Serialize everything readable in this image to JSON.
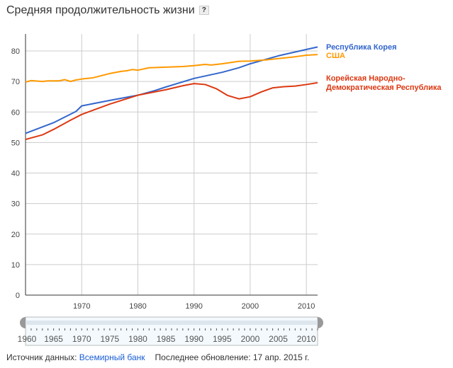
{
  "header": {
    "title": "Средняя продолжительность жизни",
    "help": "?"
  },
  "footer": {
    "source_label": "Источник данных:",
    "source_link": "Всемирный банк",
    "updated": "Последнее обновление: 17 апр. 2015 г."
  },
  "chart_data": {
    "type": "line",
    "title": "Средняя продолжительность жизни",
    "xlim": [
      1960,
      2012
    ],
    "ylim": [
      0,
      80
    ],
    "yticks": [
      0,
      10,
      20,
      30,
      40,
      50,
      60,
      70,
      80
    ],
    "xticks": [
      1970,
      1980,
      1990,
      2000,
      2010
    ],
    "slider_ticks": [
      1960,
      1965,
      1970,
      1975,
      1980,
      1985,
      1990,
      1995,
      2000,
      2005,
      2010
    ],
    "legend_placement": "right",
    "series": [
      {
        "name": "Республика Корея",
        "color": "#3366cc",
        "points": [
          [
            1960,
            53
          ],
          [
            1965,
            56.5
          ],
          [
            1969,
            60.2
          ],
          [
            1970,
            62
          ],
          [
            1975,
            63.8
          ],
          [
            1980,
            65.5
          ],
          [
            1983,
            67
          ],
          [
            1985,
            68.2
          ],
          [
            1990,
            71
          ],
          [
            1995,
            73
          ],
          [
            1998,
            74.5
          ],
          [
            2000,
            75.8
          ],
          [
            2005,
            78.4
          ],
          [
            2010,
            80.5
          ],
          [
            2012,
            81.3
          ]
        ]
      },
      {
        "name": "США",
        "color": "#ff9900",
        "points": [
          [
            1960,
            69.8
          ],
          [
            1961,
            70.3
          ],
          [
            1963,
            70
          ],
          [
            1964,
            70.2
          ],
          [
            1966,
            70.2
          ],
          [
            1967,
            70.6
          ],
          [
            1968,
            70
          ],
          [
            1969,
            70.5
          ],
          [
            1970,
            70.8
          ],
          [
            1972,
            71.2
          ],
          [
            1975,
            72.6
          ],
          [
            1977,
            73.3
          ],
          [
            1978,
            73.5
          ],
          [
            1979,
            73.9
          ],
          [
            1980,
            73.7
          ],
          [
            1982,
            74.5
          ],
          [
            1985,
            74.7
          ],
          [
            1988,
            74.9
          ],
          [
            1990,
            75.2
          ],
          [
            1992,
            75.6
          ],
          [
            1993,
            75.4
          ],
          [
            1995,
            75.8
          ],
          [
            1998,
            76.6
          ],
          [
            2000,
            76.7
          ],
          [
            2003,
            77.1
          ],
          [
            2005,
            77.5
          ],
          [
            2008,
            78.1
          ],
          [
            2010,
            78.6
          ],
          [
            2012,
            78.8
          ]
        ]
      },
      {
        "name": "Корейская Народно-Демократическая Республика",
        "label_lines": [
          "Корейская Народно-",
          "Демократическая Республика"
        ],
        "color": "#dc3912",
        "points": [
          [
            1960,
            51
          ],
          [
            1963,
            52.5
          ],
          [
            1965,
            54.3
          ],
          [
            1968,
            57.3
          ],
          [
            1970,
            59.2
          ],
          [
            1975,
            62.6
          ],
          [
            1980,
            65.5
          ],
          [
            1985,
            67.3
          ],
          [
            1988,
            68.6
          ],
          [
            1990,
            69.3
          ],
          [
            1992,
            69
          ],
          [
            1994,
            67.6
          ],
          [
            1996,
            65.4
          ],
          [
            1998,
            64.3
          ],
          [
            2000,
            65
          ],
          [
            2002,
            66.6
          ],
          [
            2004,
            67.9
          ],
          [
            2006,
            68.3
          ],
          [
            2008,
            68.5
          ],
          [
            2010,
            69
          ],
          [
            2012,
            69.6
          ]
        ]
      }
    ]
  }
}
